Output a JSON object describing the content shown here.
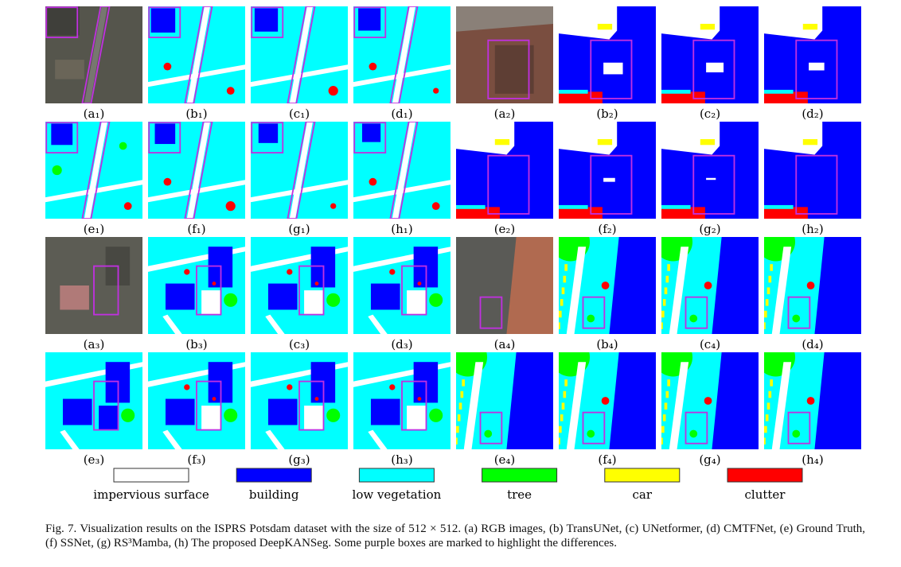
{
  "panels": [
    {
      "label": "(a₁)"
    },
    {
      "label": "(b₁)"
    },
    {
      "label": "(c₁)"
    },
    {
      "label": "(d₁)"
    },
    {
      "label": "(a₂)"
    },
    {
      "label": "(b₂)"
    },
    {
      "label": "(c₂)"
    },
    {
      "label": "(d₂)"
    },
    {
      "label": "(e₁)"
    },
    {
      "label": "(f₁)"
    },
    {
      "label": "(g₁)"
    },
    {
      "label": "(h₁)"
    },
    {
      "label": "(e₂)"
    },
    {
      "label": "(f₂)"
    },
    {
      "label": "(g₂)"
    },
    {
      "label": "(h₂)"
    },
    {
      "label": "(a₃)"
    },
    {
      "label": "(b₃)"
    },
    {
      "label": "(c₃)"
    },
    {
      "label": "(d₃)"
    },
    {
      "label": "(a₄)"
    },
    {
      "label": "(b₄)"
    },
    {
      "label": "(c₄)"
    },
    {
      "label": "(d₄)"
    },
    {
      "label": "(e₃)"
    },
    {
      "label": "(f₃)"
    },
    {
      "label": "(g₃)"
    },
    {
      "label": "(h₃)"
    },
    {
      "label": "(e₄)"
    },
    {
      "label": "(f₄)"
    },
    {
      "label": "(g₄)"
    },
    {
      "label": "(h₄)"
    }
  ],
  "legend": [
    {
      "label": "impervious surface",
      "color": "#ffffff"
    },
    {
      "label": "building",
      "color": "#0000ff"
    },
    {
      "label": "low vegetation",
      "color": "#00ffff"
    },
    {
      "label": "tree",
      "color": "#00ff00"
    },
    {
      "label": "car",
      "color": "#ffff00"
    },
    {
      "label": "clutter",
      "color": "#ff0000"
    }
  ],
  "caption": "Fig. 7.  Visualization results on the ISPRS Potsdam dataset with the size of 512 × 512. (a) RGB images, (b) TransUNet, (c) UNetformer, (d) CMTFNet, (e) Ground Truth, (f) SSNet, (g) RS³Mamba, (h) The proposed DeepKANSeg. Some purple boxes are marked to highlight the differences."
}
